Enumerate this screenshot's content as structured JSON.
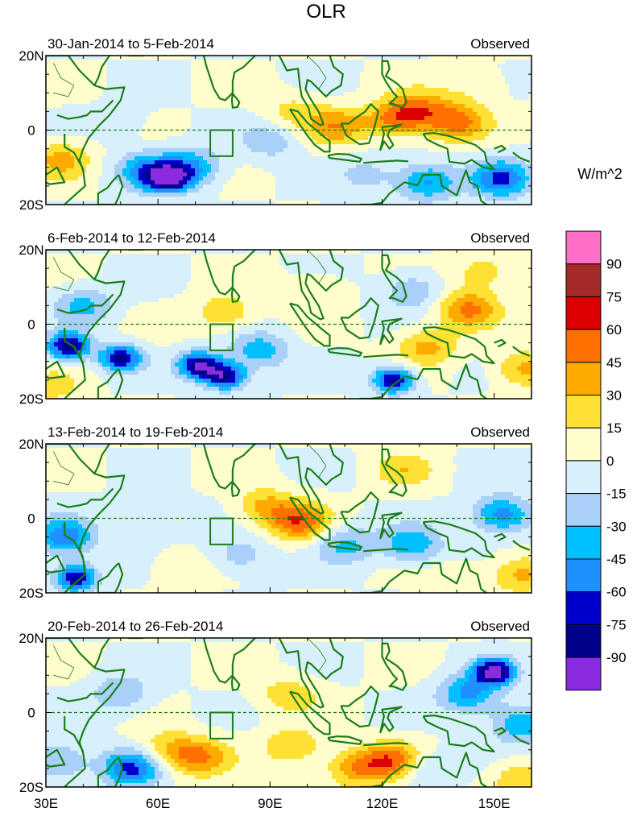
{
  "figure_title": "OLR",
  "chart_data": {
    "type": "heatmap",
    "title": "OLR",
    "units": "W/m^2",
    "xlim": [
      30,
      160
    ],
    "ylim": [
      -20,
      20
    ],
    "x_ticks": [
      30,
      60,
      90,
      120,
      150
    ],
    "x_tick_labels": [
      "30E",
      "60E",
      "90E",
      "120E",
      "150E"
    ],
    "y_ticks": [
      20,
      0,
      -20
    ],
    "y_tick_labels": [
      "20N",
      "0",
      "20S"
    ],
    "colorbar_levels": [
      -90,
      -75,
      -60,
      -45,
      -30,
      -15,
      0,
      15,
      30,
      45,
      60,
      75,
      90
    ],
    "colorbar_labels": [
      "90",
      "75",
      "60",
      "45",
      "30",
      "15",
      "0",
      "-15",
      "-30",
      "-45",
      "-60",
      "-75",
      "-90"
    ],
    "colorbar_colors": [
      "#ff6ec7",
      "#a52a2a",
      "#dc0000",
      "#ff7000",
      "#ffaa00",
      "#ffe135",
      "#fffdcc",
      "#d8f0fb",
      "#a8d0f8",
      "#00bfff",
      "#1e90ff",
      "#0000cd",
      "#00008b",
      "#8a2be2"
    ],
    "reference_box": {
      "lon": [
        74,
        80
      ],
      "lat": [
        -7,
        0
      ]
    },
    "equator_line": true,
    "panels": [
      {
        "period": "30-Jan-2014 to 5-Feb-2014",
        "label": "Observed",
        "anomalies": [
          {
            "lon": 108,
            "lat": 1,
            "value": 40
          },
          {
            "lon": 124,
            "lat": 3,
            "value": 52
          },
          {
            "lon": 140,
            "lat": 2,
            "value": 50
          },
          {
            "lon": 131,
            "lat": 6,
            "value": 35
          },
          {
            "lon": 96,
            "lat": 5,
            "value": 20
          },
          {
            "lon": 34,
            "lat": -8,
            "value": 35
          },
          {
            "lon": 63,
            "lat": -13,
            "value": -85
          },
          {
            "lon": 57,
            "lat": -11,
            "value": -50
          },
          {
            "lon": 69,
            "lat": -10,
            "value": -45
          },
          {
            "lon": 90,
            "lat": -3,
            "value": -25
          },
          {
            "lon": 132,
            "lat": -14,
            "value": -50
          },
          {
            "lon": 152,
            "lat": -13,
            "value": -60
          },
          {
            "lon": 116,
            "lat": -12,
            "value": -20
          },
          {
            "lon": 50,
            "lat": 2,
            "value": -10
          },
          {
            "lon": 145,
            "lat": 12,
            "value": 15
          }
        ]
      },
      {
        "period": "6-Feb-2014 to 12-Feb-2014",
        "label": "Observed",
        "anomalies": [
          {
            "lon": 36,
            "lat": -6,
            "value": -88
          },
          {
            "lon": 50,
            "lat": -9,
            "value": -80
          },
          {
            "lon": 71,
            "lat": -11,
            "value": -90
          },
          {
            "lon": 78,
            "lat": -14,
            "value": -85
          },
          {
            "lon": 40,
            "lat": 5,
            "value": -35
          },
          {
            "lon": 123,
            "lat": -15,
            "value": -82
          },
          {
            "lon": 87,
            "lat": -7,
            "value": -40
          },
          {
            "lon": 78,
            "lat": 3,
            "value": 30
          },
          {
            "lon": 143,
            "lat": 4,
            "value": 48
          },
          {
            "lon": 158,
            "lat": -12,
            "value": 35
          },
          {
            "lon": 132,
            "lat": -6,
            "value": 35
          },
          {
            "lon": 102,
            "lat": 9,
            "value": 15
          },
          {
            "lon": 147,
            "lat": 14,
            "value": 25
          },
          {
            "lon": 128,
            "lat": 9,
            "value": -30
          },
          {
            "lon": 32,
            "lat": -17,
            "value": 20
          }
        ]
      },
      {
        "period": "13-Feb-2014 to 19-Feb-2014",
        "label": "Observed",
        "anomalies": [
          {
            "lon": 98,
            "lat": -1,
            "value": 52
          },
          {
            "lon": 89,
            "lat": 3,
            "value": 35
          },
          {
            "lon": 38,
            "lat": -16,
            "value": -82
          },
          {
            "lon": 35,
            "lat": -5,
            "value": -55
          },
          {
            "lon": 152,
            "lat": 1,
            "value": -55
          },
          {
            "lon": 128,
            "lat": -7,
            "value": -45
          },
          {
            "lon": 110,
            "lat": -7,
            "value": -35
          },
          {
            "lon": 157,
            "lat": -15,
            "value": 35
          },
          {
            "lon": 59,
            "lat": 0,
            "value": -20
          },
          {
            "lon": 82,
            "lat": -10,
            "value": -25
          },
          {
            "lon": 126,
            "lat": 13,
            "value": 25
          },
          {
            "lon": 140,
            "lat": -17,
            "value": 15
          },
          {
            "lon": 66,
            "lat": -14,
            "value": 15
          }
        ]
      },
      {
        "period": "20-Feb-2014 to 26-Feb-2014",
        "label": "Observed",
        "anomalies": [
          {
            "lon": 150,
            "lat": 11,
            "value": -95
          },
          {
            "lon": 143,
            "lat": 5,
            "value": -50
          },
          {
            "lon": 157,
            "lat": -3,
            "value": -45
          },
          {
            "lon": 123,
            "lat": -13,
            "value": 55
          },
          {
            "lon": 113,
            "lat": -15,
            "value": 40
          },
          {
            "lon": 71,
            "lat": -12,
            "value": 45
          },
          {
            "lon": 62,
            "lat": -10,
            "value": 30
          },
          {
            "lon": 96,
            "lat": -9,
            "value": 30
          },
          {
            "lon": 95,
            "lat": 5,
            "value": 25
          },
          {
            "lon": 53,
            "lat": -15,
            "value": -65
          },
          {
            "lon": 50,
            "lat": 5,
            "value": -30
          },
          {
            "lon": 33,
            "lat": -13,
            "value": -35
          },
          {
            "lon": 131,
            "lat": -15,
            "value": -25
          },
          {
            "lon": 157,
            "lat": -18,
            "value": 30
          }
        ]
      }
    ]
  }
}
